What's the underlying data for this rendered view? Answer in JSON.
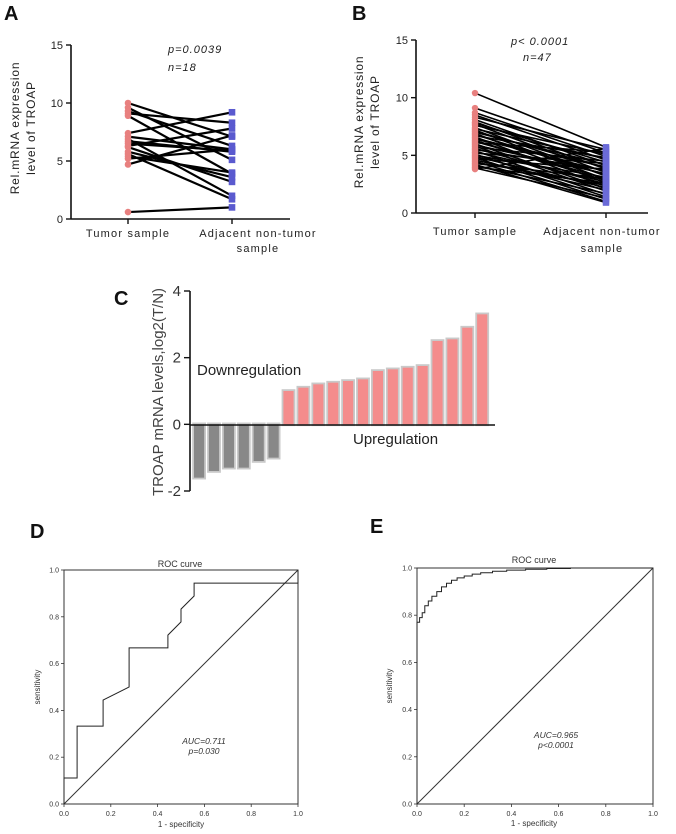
{
  "panel_labels": [
    "A",
    "B",
    "C",
    "D",
    "E"
  ],
  "chart_data": [
    {
      "id": "A",
      "type": "line",
      "title": "",
      "ylabel_lines": [
        "Rel.mRNA expression",
        "level of TROAP"
      ],
      "categories": [
        "Tumor sample",
        "Adjacent non-tumor sample"
      ],
      "category_label_lines": [
        [
          "Tumor sample"
        ],
        [
          "Adjacent non-tumor",
          "sample"
        ]
      ],
      "ylim": [
        0,
        15
      ],
      "yticks": [
        0,
        5,
        10,
        15
      ],
      "annotations": [
        "p=0.0039",
        "n=18"
      ],
      "colors": {
        "tumor": "#e8807f",
        "adjacent": "#5a5acf",
        "line": "#000000"
      },
      "pairs": [
        [
          10.0,
          7.1
        ],
        [
          9.6,
          5.1
        ],
        [
          9.3,
          6.3
        ],
        [
          9.1,
          8.3
        ],
        [
          7.4,
          9.2
        ],
        [
          7.1,
          6.0
        ],
        [
          6.9,
          2.0
        ],
        [
          6.7,
          5.8
        ],
        [
          6.3,
          7.8
        ],
        [
          6.2,
          3.2
        ],
        [
          5.8,
          3.6
        ],
        [
          5.6,
          1.7
        ],
        [
          5.4,
          4.0
        ],
        [
          5.2,
          6.0
        ],
        [
          4.7,
          7.2
        ],
        [
          6.5,
          5.9
        ],
        [
          8.9,
          3.9
        ],
        [
          0.6,
          1.0
        ]
      ]
    },
    {
      "id": "B",
      "type": "line",
      "title": "",
      "ylabel_lines": [
        "Rel.mRNA expression",
        "level of TROAP"
      ],
      "categories": [
        "Tumor sample",
        "Adjacent non-tumor sample"
      ],
      "category_label_lines": [
        [
          "Tumor sample"
        ],
        [
          "Adjacent non-tumor",
          "sample"
        ]
      ],
      "ylim": [
        0,
        15
      ],
      "yticks": [
        0,
        5,
        10,
        15
      ],
      "annotations": [
        "p< 0.0001",
        "n=47"
      ],
      "colors": {
        "tumor": "#e8807f",
        "adjacent": "#6b6bd8",
        "line": "#000000"
      },
      "pairs": [
        [
          10.4,
          5.7
        ],
        [
          9.1,
          5.2
        ],
        [
          8.7,
          4.9
        ],
        [
          8.5,
          4.6
        ],
        [
          8.3,
          5.5
        ],
        [
          8.1,
          4.1
        ],
        [
          7.9,
          3.8
        ],
        [
          7.8,
          4.4
        ],
        [
          7.7,
          3.5
        ],
        [
          7.6,
          5.1
        ],
        [
          7.4,
          3.2
        ],
        [
          7.3,
          4.7
        ],
        [
          7.2,
          2.9
        ],
        [
          7.1,
          3.9
        ],
        [
          7.0,
          4.2
        ],
        [
          6.9,
          2.6
        ],
        [
          6.8,
          3.3
        ],
        [
          6.7,
          4.8
        ],
        [
          6.6,
          2.3
        ],
        [
          6.5,
          3.6
        ],
        [
          6.4,
          4.0
        ],
        [
          6.3,
          2.8
        ],
        [
          6.2,
          3.0
        ],
        [
          6.1,
          5.3
        ],
        [
          6.0,
          2.1
        ],
        [
          5.9,
          3.4
        ],
        [
          5.8,
          1.9
        ],
        [
          5.7,
          4.5
        ],
        [
          5.6,
          2.5
        ],
        [
          5.5,
          3.7
        ],
        [
          5.4,
          1.6
        ],
        [
          5.3,
          2.7
        ],
        [
          5.2,
          4.3
        ],
        [
          5.1,
          1.4
        ],
        [
          5.0,
          3.1
        ],
        [
          4.9,
          2.2
        ],
        [
          4.8,
          1.2
        ],
        [
          4.7,
          3.8
        ],
        [
          4.6,
          2.0
        ],
        [
          4.5,
          1.0
        ],
        [
          4.4,
          2.4
        ],
        [
          4.3,
          3.0
        ],
        [
          4.2,
          0.9
        ],
        [
          4.1,
          1.7
        ],
        [
          4.0,
          2.6
        ],
        [
          3.9,
          1.3
        ],
        [
          3.8,
          5.6
        ]
      ]
    },
    {
      "id": "C",
      "type": "bar",
      "title": "",
      "ylabel": "TROAP mRNA levels,log2(T/N)",
      "ylim": [
        -2,
        4
      ],
      "yticks": [
        -2,
        0,
        2,
        4
      ],
      "annotations": [
        "Downregulation",
        "Upregulation"
      ],
      "colors": {
        "down": "#888888",
        "up": "#f48c8c",
        "shadow": "#c9c9c9"
      },
      "values": [
        -1.6,
        -1.4,
        -1.3,
        -1.3,
        -1.1,
        -1.0,
        1.0,
        1.1,
        1.2,
        1.25,
        1.3,
        1.35,
        1.6,
        1.65,
        1.7,
        1.75,
        2.5,
        2.55,
        2.9,
        3.3
      ]
    },
    {
      "id": "D",
      "type": "line",
      "title": "ROC curve",
      "xlabel": "1 - specificity",
      "ylabel": "sensitivity",
      "xlim": [
        0,
        1
      ],
      "ylim": [
        0,
        1
      ],
      "xticks": [
        "0.0",
        "0.2",
        "0.4",
        "0.6",
        "0.8",
        "1.0"
      ],
      "yticks": [
        "0.0",
        "0.2",
        "0.4",
        "0.6",
        "0.8",
        "1.0"
      ],
      "annotations": [
        "AUC=0.711",
        "p=0.030"
      ],
      "curve": {
        "x": [
          0,
          0,
          0.056,
          0.056,
          0.167,
          0.167,
          0.278,
          0.278,
          0.444,
          0.444,
          0.5,
          0.5,
          0.556,
          0.556,
          1.0,
          1.0
        ],
        "y": [
          0,
          0.111,
          0.111,
          0.333,
          0.333,
          0.444,
          0.5,
          0.667,
          0.667,
          0.722,
          0.778,
          0.833,
          0.889,
          0.944,
          0.944,
          1.0
        ]
      }
    },
    {
      "id": "E",
      "type": "line",
      "title": "ROC curve",
      "xlabel": "1 - specificity",
      "ylabel": "sensitivity",
      "xlim": [
        0,
        1
      ],
      "ylim": [
        0,
        1
      ],
      "xticks": [
        "0.0",
        "0.2",
        "0.4",
        "0.6",
        "0.8",
        "1.0"
      ],
      "yticks": [
        "0.0",
        "0.2",
        "0.4",
        "0.6",
        "0.8",
        "1.0"
      ],
      "annotations": [
        "AUC=0.965",
        "p<0.0001"
      ],
      "curve": {
        "x": [
          0,
          0,
          0.011,
          0.011,
          0.022,
          0.022,
          0.033,
          0.033,
          0.048,
          0.048,
          0.063,
          0.063,
          0.084,
          0.084,
          0.104,
          0.104,
          0.125,
          0.125,
          0.146,
          0.146,
          0.17,
          0.17,
          0.2,
          0.2,
          0.234,
          0.234,
          0.27,
          0.27,
          0.32,
          0.32,
          0.38,
          0.38,
          0.46,
          0.46,
          0.55,
          0.55,
          0.65,
          0.65,
          1.0
        ],
        "y": [
          0,
          0.77,
          0.77,
          0.79,
          0.79,
          0.81,
          0.81,
          0.84,
          0.84,
          0.86,
          0.86,
          0.88,
          0.88,
          0.9,
          0.9,
          0.92,
          0.92,
          0.935,
          0.935,
          0.948,
          0.948,
          0.958,
          0.958,
          0.966,
          0.966,
          0.974,
          0.974,
          0.98,
          0.98,
          0.986,
          0.986,
          0.991,
          0.991,
          0.995,
          0.995,
          0.998,
          0.998,
          1.0,
          1.0
        ]
      }
    }
  ]
}
